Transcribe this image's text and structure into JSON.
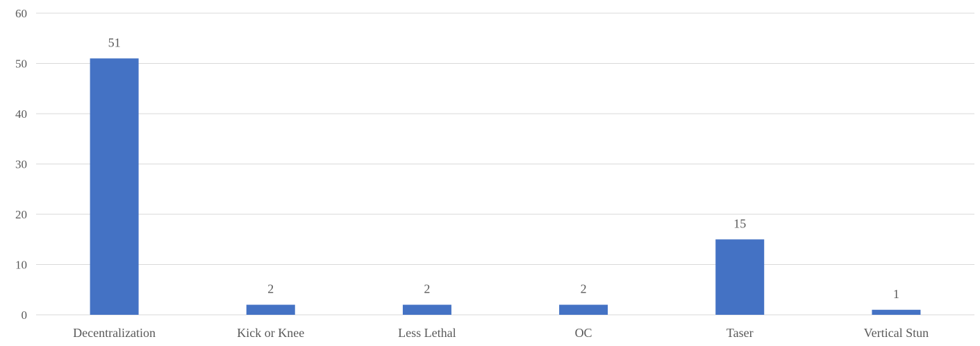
{
  "chart_data": {
    "type": "bar",
    "categories": [
      "Decentralization",
      "Kick or Knee",
      "Less Lethal",
      "OC",
      "Taser",
      "Vertical Stun"
    ],
    "values": [
      51,
      2,
      2,
      2,
      15,
      1
    ],
    "data_labels": [
      "51",
      "2",
      "2",
      "2",
      "15",
      "1"
    ],
    "ylim": [
      0,
      60
    ],
    "yticks": [
      0,
      10,
      20,
      30,
      40,
      50,
      60
    ],
    "grid": true,
    "legend": "none",
    "title": "",
    "xlabel": "",
    "ylabel": "",
    "bar_color": "#4472c4"
  }
}
